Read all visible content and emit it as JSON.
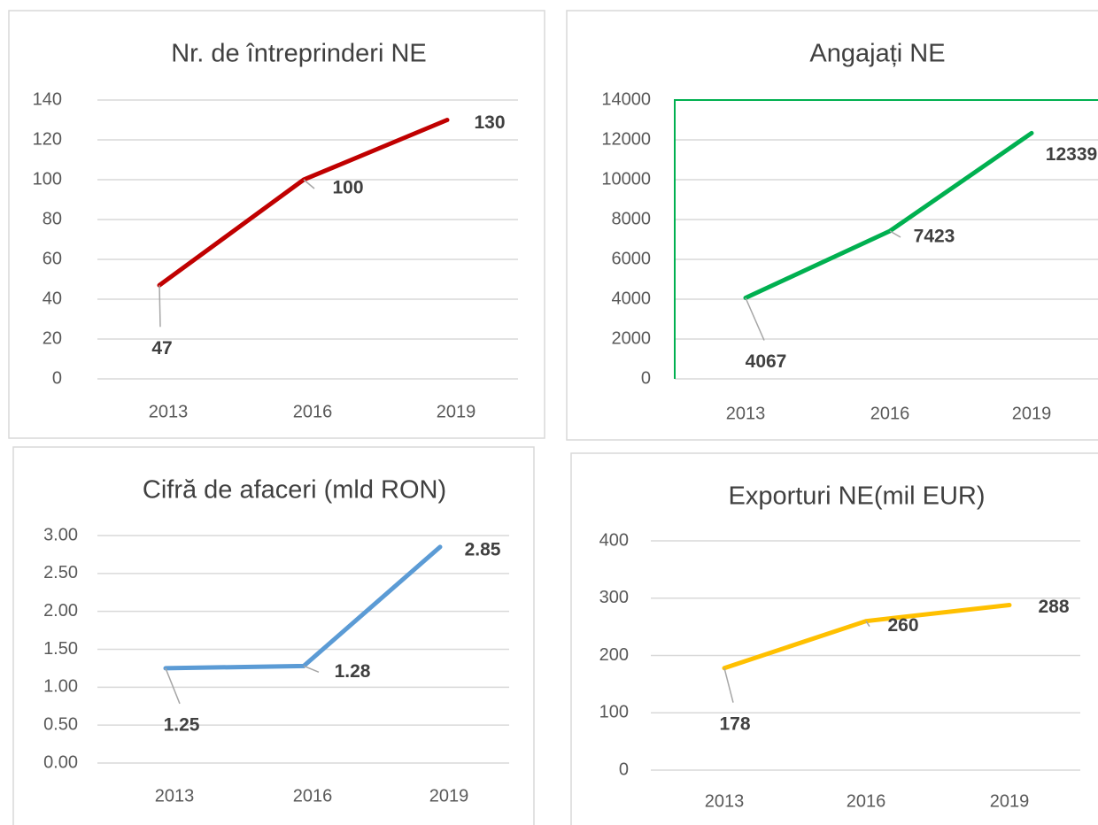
{
  "chart_data": [
    {
      "type": "line",
      "title": "Nr. de întreprinderi NE",
      "categories": [
        "2013",
        "2016",
        "2019"
      ],
      "values": [
        47,
        100,
        130
      ],
      "color": "#c00000",
      "ylim": [
        0,
        140
      ],
      "yticks": [
        0,
        20,
        40,
        60,
        80,
        100,
        120,
        140
      ],
      "grid": true
    },
    {
      "type": "line",
      "title": "Angajați NE",
      "categories": [
        "2013",
        "2016",
        "2019"
      ],
      "values": [
        4067,
        7423,
        12339
      ],
      "color": "#00b050",
      "ylim": [
        0,
        14000
      ],
      "yticks": [
        0,
        2000,
        4000,
        6000,
        8000,
        10000,
        12000,
        14000
      ],
      "grid": true
    },
    {
      "type": "line",
      "title": "Cifră de afaceri (mld RON)",
      "categories": [
        "2013",
        "2016",
        "2019"
      ],
      "values": [
        1.25,
        1.28,
        2.85
      ],
      "color": "#5b9bd5",
      "ylim": [
        0,
        3
      ],
      "yticks": [
        {
          "value": 0,
          "label": "0.00"
        },
        {
          "value": 0.5,
          "label": "0.50"
        },
        {
          "value": 1,
          "label": "1.00"
        },
        {
          "value": 1.5,
          "label": "1.50"
        },
        {
          "value": 2,
          "label": "2.00"
        },
        {
          "value": 2.5,
          "label": "2.50"
        },
        {
          "value": 3,
          "label": "3.00"
        }
      ],
      "grid": true
    },
    {
      "type": "line",
      "title": "Exporturi NE(mil EUR)",
      "categories": [
        "2013",
        "2016",
        "2019"
      ],
      "values": [
        178,
        260,
        288
      ],
      "color": "#ffc000",
      "ylim": [
        0,
        400
      ],
      "yticks": [
        0,
        100,
        200,
        300,
        400
      ],
      "grid": true
    }
  ]
}
